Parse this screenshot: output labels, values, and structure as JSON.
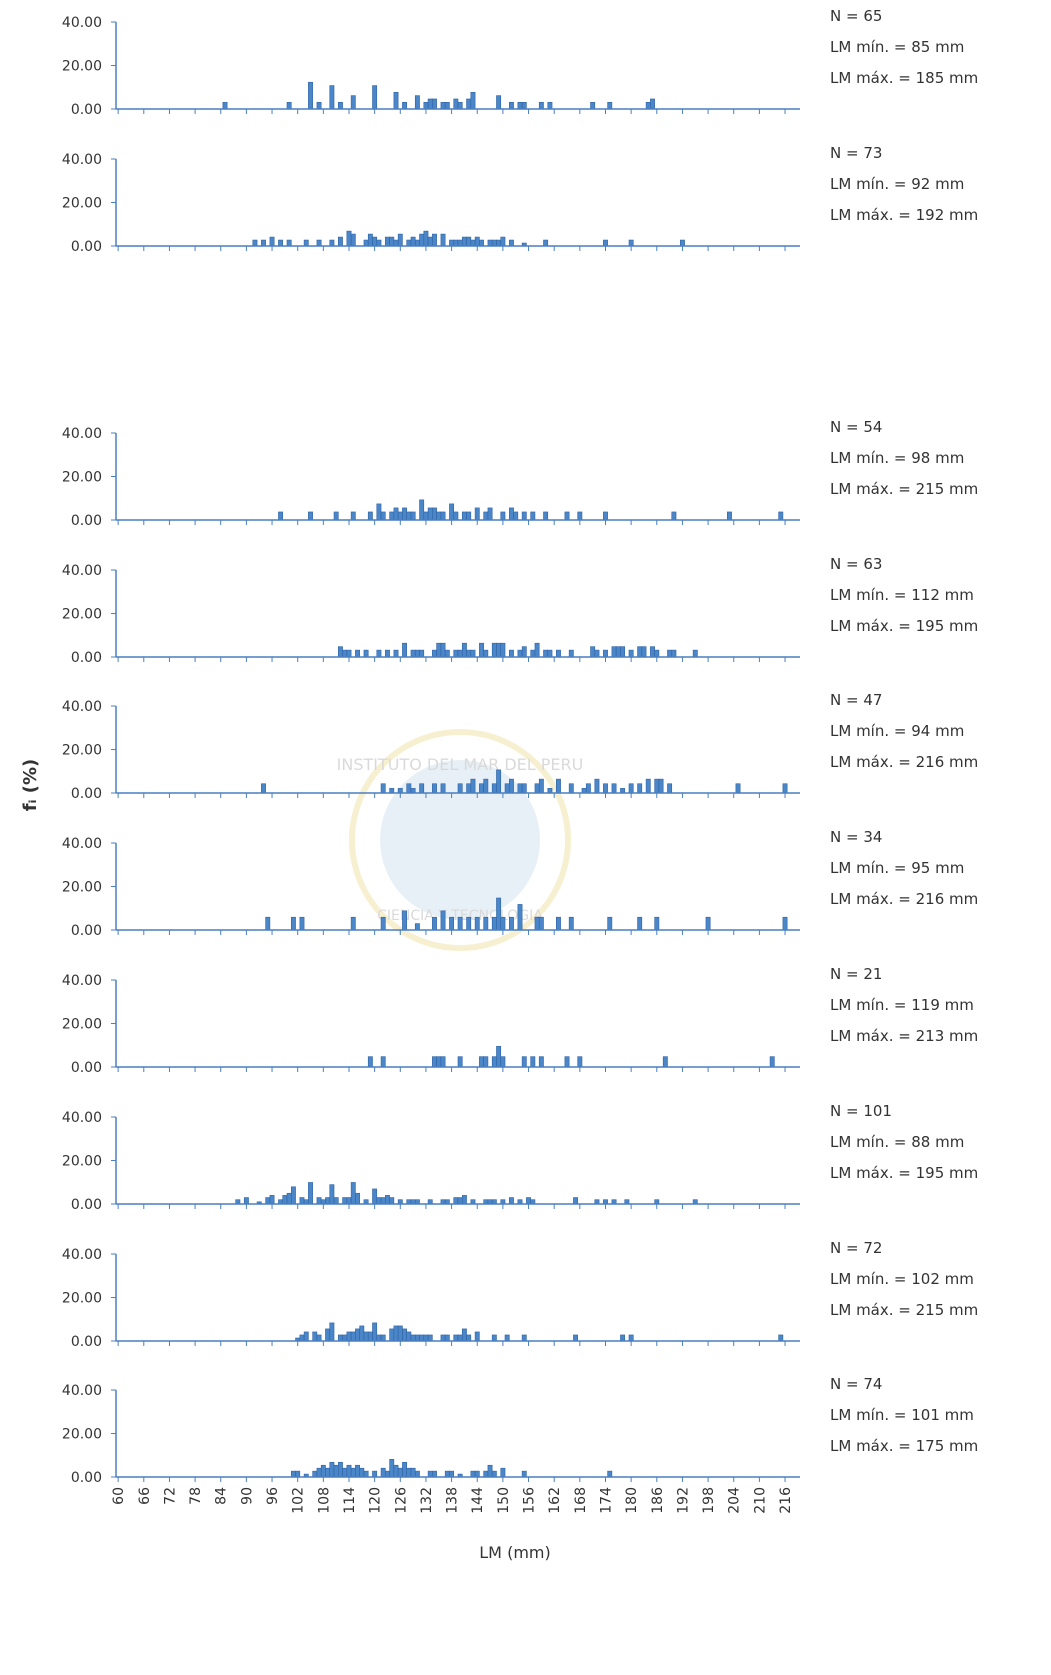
{
  "shared": {
    "ylabel": "fᵢ (%)",
    "xlabel": "LM (mm)",
    "watermark": {
      "top": "INSTITUTO DEL MAR DEL PERU",
      "bottom": "CIENCIA Y TECNOLOGIA"
    }
  },
  "chart_data": [
    {
      "type": "bar",
      "annotations": [
        "N = 65",
        "LM mín. = 85 mm",
        "LM máx. = 185 mm"
      ],
      "color": "#4a86c8",
      "xlim": [
        59.5,
        219.5
      ],
      "ylim": [
        0,
        40
      ],
      "yticks": [
        {
          "value": 0,
          "label": "0.00"
        },
        {
          "value": 20,
          "label": "20.00"
        },
        {
          "value": 40,
          "label": "40.00"
        }
      ],
      "x": [
        85,
        100,
        105,
        107,
        110,
        112,
        115,
        120,
        125,
        127,
        130,
        132,
        133,
        134,
        136,
        137,
        139,
        140,
        142,
        143,
        149,
        152,
        154,
        155,
        159,
        161,
        171,
        175,
        184,
        185
      ],
      "values": [
        3.08,
        3.08,
        12.31,
        3.08,
        10.77,
        3.08,
        6.15,
        10.77,
        7.69,
        3.08,
        6.15,
        3.08,
        4.62,
        4.62,
        3.08,
        3.08,
        4.62,
        3.08,
        4.62,
        7.69,
        6.15,
        3.08,
        3.08,
        3.08,
        3.08,
        3.08,
        3.08,
        3.08,
        3.08,
        4.62
      ]
    },
    {
      "type": "bar",
      "annotations": [
        "N = 73",
        "LM mín. = 92 mm",
        "LM máx. = 192 mm"
      ],
      "color": "#4a86c8",
      "xlim": [
        59.5,
        219.5
      ],
      "ylim": [
        0,
        40
      ],
      "yticks": [
        {
          "value": 0,
          "label": "0.00"
        },
        {
          "value": 20,
          "label": "20.00"
        },
        {
          "value": 40,
          "label": "40.00"
        }
      ],
      "x": [
        92,
        94,
        96,
        98,
        100,
        104,
        107,
        110,
        112,
        114,
        115,
        118,
        119,
        120,
        121,
        123,
        124,
        125,
        126,
        128,
        129,
        130,
        131,
        132,
        133,
        134,
        136,
        138,
        139,
        140,
        141,
        142,
        143,
        144,
        145,
        147,
        148,
        149,
        150,
        152,
        155,
        160,
        174,
        180,
        192
      ],
      "values": [
        2.74,
        2.74,
        4.11,
        2.74,
        2.74,
        2.74,
        2.74,
        2.74,
        4.11,
        6.85,
        5.48,
        2.74,
        5.48,
        4.11,
        2.74,
        4.11,
        4.11,
        2.74,
        5.48,
        2.74,
        4.11,
        2.74,
        5.48,
        6.85,
        4.11,
        5.48,
        5.48,
        2.74,
        2.74,
        2.74,
        4.11,
        4.11,
        2.74,
        4.11,
        2.74,
        2.74,
        2.74,
        2.74,
        4.11,
        2.74,
        1.37,
        2.74,
        2.74,
        2.74,
        2.74
      ]
    },
    {
      "type": "bar",
      "annotations": [
        "N = 54",
        "LM mín. = 98 mm",
        "LM máx. = 215 mm"
      ],
      "color": "#4a86c8",
      "xlim": [
        59.5,
        219.5
      ],
      "ylim": [
        0,
        40
      ],
      "yticks": [
        {
          "value": 0,
          "label": "0.00"
        },
        {
          "value": 20,
          "label": "20.00"
        },
        {
          "value": 40,
          "label": "40.00"
        }
      ],
      "x": [
        98,
        105,
        111,
        115,
        119,
        121,
        122,
        124,
        125,
        126,
        127,
        128,
        129,
        131,
        132,
        133,
        134,
        135,
        136,
        138,
        139,
        141,
        142,
        144,
        146,
        147,
        150,
        152,
        153,
        155,
        157,
        160,
        165,
        168,
        174,
        190,
        203,
        215
      ],
      "values": [
        3.7,
        3.7,
        3.7,
        3.7,
        3.7,
        7.41,
        3.7,
        3.7,
        5.56,
        3.7,
        5.56,
        3.7,
        3.7,
        9.26,
        3.7,
        5.56,
        5.56,
        3.7,
        3.7,
        7.41,
        3.7,
        3.7,
        3.7,
        5.56,
        3.7,
        5.56,
        3.7,
        5.56,
        3.7,
        3.7,
        3.7,
        3.7,
        3.7,
        3.7,
        3.7,
        3.7,
        3.7,
        3.7
      ]
    },
    {
      "type": "bar",
      "annotations": [
        "N = 63",
        "LM mín. = 112 mm",
        "LM máx. = 195 mm"
      ],
      "color": "#4a86c8",
      "xlim": [
        59.5,
        219.5
      ],
      "ylim": [
        0,
        40
      ],
      "yticks": [
        {
          "value": 0,
          "label": "0.00"
        },
        {
          "value": 20,
          "label": "20.00"
        },
        {
          "value": 40,
          "label": "40.00"
        }
      ],
      "x": [
        112,
        113,
        114,
        116,
        118,
        121,
        123,
        125,
        127,
        129,
        130,
        131,
        134,
        135,
        136,
        137,
        139,
        140,
        141,
        142,
        143,
        145,
        146,
        148,
        149,
        150,
        152,
        154,
        155,
        157,
        158,
        160,
        161,
        163,
        166,
        171,
        172,
        174,
        176,
        177,
        178,
        180,
        182,
        183,
        185,
        186,
        189,
        190,
        195
      ],
      "values": [
        4.76,
        3.17,
        3.17,
        3.17,
        3.17,
        3.17,
        3.17,
        3.17,
        6.35,
        3.17,
        3.17,
        3.17,
        3.17,
        6.35,
        6.35,
        3.17,
        3.17,
        3.17,
        6.35,
        3.17,
        3.17,
        6.35,
        3.17,
        6.35,
        6.35,
        6.35,
        3.17,
        3.17,
        4.76,
        3.17,
        6.35,
        3.17,
        3.17,
        3.17,
        3.17,
        4.76,
        3.17,
        3.17,
        4.76,
        4.76,
        4.76,
        3.17,
        4.76,
        4.76,
        4.76,
        3.17,
        3.17,
        3.17,
        3.17
      ]
    },
    {
      "type": "bar",
      "annotations": [
        "N = 47",
        "LM mín. = 94 mm",
        "LM máx. = 216 mm"
      ],
      "color": "#4a86c8",
      "xlim": [
        59.5,
        219.5
      ],
      "ylim": [
        0,
        40
      ],
      "yticks": [
        {
          "value": 0,
          "label": "0.00"
        },
        {
          "value": 20,
          "label": "20.00"
        },
        {
          "value": 40,
          "label": "40.00"
        }
      ],
      "x": [
        94,
        122,
        124,
        126,
        128,
        129,
        131,
        134,
        136,
        140,
        142,
        143,
        145,
        146,
        148,
        149,
        151,
        152,
        154,
        155,
        158,
        159,
        161,
        163,
        166,
        169,
        170,
        172,
        174,
        176,
        178,
        180,
        182,
        184,
        186,
        187,
        189,
        205,
        216
      ],
      "values": [
        4.26,
        4.26,
        2.13,
        2.13,
        4.26,
        2.13,
        4.26,
        4.26,
        4.26,
        4.26,
        4.26,
        6.38,
        4.26,
        6.38,
        4.26,
        10.64,
        4.26,
        6.38,
        4.26,
        4.26,
        4.26,
        6.38,
        2.13,
        6.38,
        4.26,
        2.13,
        4.26,
        6.38,
        4.26,
        4.26,
        2.13,
        4.26,
        4.26,
        6.38,
        6.38,
        6.38,
        4.26,
        4.26,
        4.26
      ]
    },
    {
      "type": "bar",
      "annotations": [
        "N = 34",
        "LM mín. = 95 mm",
        "LM máx. = 216 mm"
      ],
      "color": "#4a86c8",
      "xlim": [
        59.5,
        219.5
      ],
      "ylim": [
        0,
        40
      ],
      "yticks": [
        {
          "value": 0,
          "label": "0.00"
        },
        {
          "value": 20,
          "label": "20.00"
        },
        {
          "value": 40,
          "label": "40.00"
        }
      ],
      "x": [
        95,
        101,
        103,
        115,
        122,
        127,
        130,
        134,
        136,
        138,
        140,
        142,
        144,
        146,
        148,
        149,
        150,
        152,
        154,
        158,
        159,
        163,
        166,
        175,
        182,
        186,
        198,
        216
      ],
      "values": [
        5.88,
        5.88,
        5.88,
        5.88,
        5.88,
        8.82,
        2.94,
        5.88,
        8.82,
        5.88,
        5.88,
        5.88,
        5.88,
        5.88,
        5.88,
        14.71,
        5.88,
        5.88,
        11.76,
        5.88,
        5.88,
        5.88,
        5.88,
        5.88,
        5.88,
        5.88,
        5.88,
        5.88
      ]
    },
    {
      "type": "bar",
      "annotations": [
        "N = 21",
        "LM mín. = 119 mm",
        "LM máx. = 213 mm"
      ],
      "color": "#4a86c8",
      "xlim": [
        59.5,
        219.5
      ],
      "ylim": [
        0,
        40
      ],
      "yticks": [
        {
          "value": 0,
          "label": "0.00"
        },
        {
          "value": 20,
          "label": "20.00"
        },
        {
          "value": 40,
          "label": "40.00"
        }
      ],
      "x": [
        119,
        122,
        134,
        135,
        136,
        140,
        145,
        146,
        148,
        149,
        150,
        155,
        157,
        159,
        165,
        168,
        188,
        213
      ],
      "values": [
        4.76,
        4.76,
        4.76,
        4.76,
        4.76,
        4.76,
        4.76,
        4.76,
        4.76,
        9.52,
        4.76,
        4.76,
        4.76,
        4.76,
        4.76,
        4.76,
        4.76,
        4.76
      ]
    },
    {
      "type": "bar",
      "annotations": [
        "N = 101",
        "LM mín. = 88 mm",
        "LM máx. = 195 mm"
      ],
      "color": "#4a86c8",
      "xlim": [
        59.5,
        219.5
      ],
      "ylim": [
        0,
        40
      ],
      "yticks": [
        {
          "value": 0,
          "label": "0.00"
        },
        {
          "value": 20,
          "label": "20.00"
        },
        {
          "value": 40,
          "label": "40.00"
        }
      ],
      "x": [
        88,
        90,
        93,
        95,
        96,
        98,
        99,
        100,
        101,
        103,
        104,
        105,
        107,
        108,
        109,
        110,
        111,
        113,
        114,
        115,
        116,
        118,
        120,
        121,
        122,
        123,
        124,
        126,
        128,
        129,
        130,
        133,
        136,
        137,
        139,
        140,
        141,
        143,
        146,
        147,
        148,
        150,
        152,
        154,
        156,
        157,
        167,
        172,
        174,
        176,
        179,
        186,
        195
      ],
      "values": [
        1.98,
        2.97,
        0.99,
        2.97,
        3.96,
        1.98,
        3.96,
        4.95,
        7.92,
        2.97,
        1.98,
        9.9,
        2.97,
        1.98,
        2.97,
        8.91,
        2.97,
        2.97,
        2.97,
        9.9,
        4.95,
        1.98,
        6.93,
        2.97,
        2.97,
        3.96,
        2.97,
        1.98,
        1.98,
        1.98,
        1.98,
        1.98,
        1.98,
        1.98,
        2.97,
        2.97,
        3.96,
        1.98,
        1.98,
        1.98,
        1.98,
        1.98,
        2.97,
        1.98,
        2.97,
        1.98,
        2.97,
        1.98,
        1.98,
        1.98,
        1.98,
        1.98,
        1.98
      ]
    },
    {
      "type": "bar",
      "annotations": [
        "N = 72",
        "LM mín. = 102 mm",
        "LM máx. = 215 mm"
      ],
      "color": "#4a86c8",
      "xlim": [
        59.5,
        219.5
      ],
      "ylim": [
        0,
        40
      ],
      "yticks": [
        {
          "value": 0,
          "label": "0.00"
        },
        {
          "value": 20,
          "label": "20.00"
        },
        {
          "value": 40,
          "label": "40.00"
        }
      ],
      "x": [
        102,
        103,
        104,
        106,
        107,
        109,
        110,
        112,
        113,
        114,
        115,
        116,
        117,
        118,
        119,
        120,
        121,
        122,
        124,
        125,
        126,
        127,
        128,
        129,
        130,
        131,
        132,
        133,
        136,
        137,
        139,
        140,
        141,
        142,
        144,
        148,
        151,
        155,
        167,
        178,
        180,
        215
      ],
      "values": [
        1.39,
        2.78,
        4.17,
        4.17,
        2.78,
        5.56,
        8.33,
        2.78,
        2.78,
        4.17,
        4.17,
        5.56,
        6.94,
        4.17,
        4.17,
        8.33,
        2.78,
        2.78,
        5.56,
        6.94,
        6.94,
        5.56,
        4.17,
        2.78,
        2.78,
        2.78,
        2.78,
        2.78,
        2.78,
        2.78,
        2.78,
        2.78,
        5.56,
        2.78,
        4.17,
        2.78,
        2.78,
        2.78,
        2.78,
        2.78,
        2.78,
        2.78
      ]
    },
    {
      "type": "bar",
      "annotations": [
        "N = 74",
        "LM mín. = 101 mm",
        "LM máx. = 175 mm"
      ],
      "color": "#4a86c8",
      "xlim": [
        59.5,
        219.5
      ],
      "ylim": [
        0,
        40
      ],
      "yticks": [
        {
          "value": 0,
          "label": "0.00"
        },
        {
          "value": 20,
          "label": "20.00"
        },
        {
          "value": 40,
          "label": "40.00"
        }
      ],
      "xticks": [
        60,
        66,
        72,
        78,
        84,
        90,
        96,
        102,
        108,
        114,
        120,
        126,
        132,
        138,
        144,
        150,
        156,
        162,
        168,
        174,
        180,
        186,
        192,
        198,
        204,
        210,
        216
      ],
      "x": [
        101,
        102,
        104,
        106,
        107,
        108,
        109,
        110,
        111,
        112,
        113,
        114,
        115,
        116,
        117,
        118,
        120,
        122,
        123,
        124,
        125,
        126,
        127,
        128,
        129,
        130,
        133,
        134,
        137,
        138,
        140,
        143,
        144,
        146,
        147,
        148,
        150,
        155,
        175
      ],
      "values": [
        2.7,
        2.7,
        1.35,
        2.7,
        4.05,
        5.41,
        4.05,
        6.76,
        5.41,
        6.76,
        4.05,
        5.41,
        4.05,
        5.41,
        4.05,
        2.7,
        2.7,
        4.05,
        2.7,
        8.11,
        5.41,
        4.05,
        6.76,
        4.05,
        4.05,
        2.7,
        2.7,
        2.7,
        2.7,
        2.7,
        1.35,
        2.7,
        2.7,
        2.7,
        5.41,
        2.7,
        4.05,
        2.7,
        2.7
      ]
    }
  ]
}
